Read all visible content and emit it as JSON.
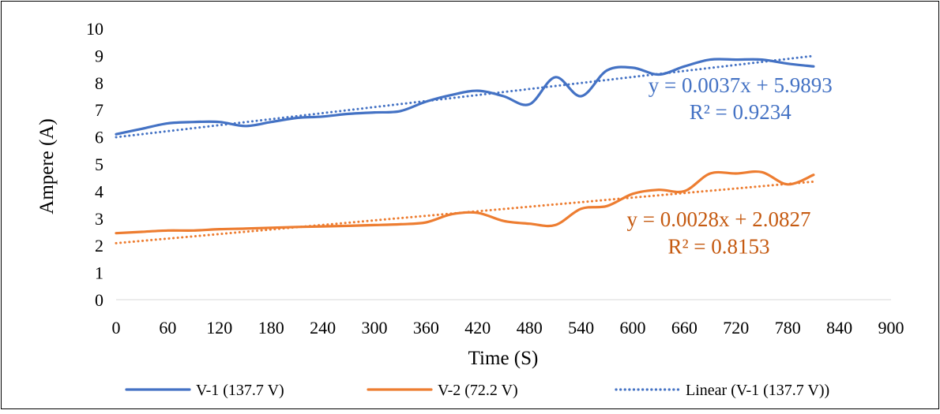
{
  "chart_data": {
    "type": "line",
    "xlabel": "Time (S)",
    "ylabel": "Ampere (A)",
    "xlim": [
      0,
      900
    ],
    "ylim": [
      0,
      10
    ],
    "x_ticks": [
      0,
      60,
      120,
      180,
      240,
      300,
      360,
      420,
      480,
      540,
      600,
      660,
      720,
      780,
      840,
      900
    ],
    "y_ticks": [
      0,
      1,
      2,
      3,
      4,
      5,
      6,
      7,
      8,
      9,
      10
    ],
    "x_tick_labels": [
      "0",
      "60",
      "120",
      "180",
      "240",
      "300",
      "360",
      "420",
      "480",
      "540",
      "600",
      "660",
      "720",
      "780",
      "840",
      "900"
    ],
    "y_tick_labels": [
      "0",
      "1",
      "2",
      "3",
      "4",
      "5",
      "6",
      "7",
      "8",
      "9",
      "10"
    ],
    "grid": false,
    "legend_position": "bottom",
    "series": [
      {
        "name": "V-1 (137.7 V)",
        "color": "#4472C4",
        "style": "solid",
        "x": [
          0,
          30,
          60,
          90,
          120,
          150,
          180,
          210,
          240,
          270,
          300,
          330,
          360,
          390,
          420,
          450,
          480,
          510,
          540,
          570,
          600,
          630,
          660,
          690,
          720,
          750,
          780,
          810
        ],
        "y": [
          6.1,
          6.3,
          6.5,
          6.55,
          6.55,
          6.4,
          6.55,
          6.7,
          6.75,
          6.85,
          6.9,
          6.95,
          7.3,
          7.55,
          7.7,
          7.5,
          7.2,
          8.2,
          7.5,
          8.45,
          8.55,
          8.3,
          8.6,
          8.85,
          8.85,
          8.85,
          8.7,
          8.6
        ]
      },
      {
        "name": "V-2 (72.2 V)",
        "color": "#ED7D31",
        "style": "solid",
        "x": [
          0,
          30,
          60,
          90,
          120,
          150,
          180,
          210,
          240,
          270,
          300,
          330,
          360,
          390,
          420,
          450,
          480,
          510,
          540,
          570,
          600,
          630,
          660,
          690,
          720,
          750,
          780,
          810
        ],
        "y": [
          2.45,
          2.5,
          2.55,
          2.55,
          2.6,
          2.62,
          2.65,
          2.68,
          2.7,
          2.72,
          2.75,
          2.78,
          2.85,
          3.15,
          3.2,
          2.9,
          2.8,
          2.75,
          3.35,
          3.45,
          3.9,
          4.05,
          4.0,
          4.65,
          4.65,
          4.7,
          4.25,
          4.6
        ]
      },
      {
        "name": "Linear (V-1 (137.7 V))",
        "color": "#4472C4",
        "style": "dotted",
        "x": [
          0,
          810
        ],
        "y": [
          5.9893,
          8.9863
        ]
      },
      {
        "name": "",
        "color": "#ED7D31",
        "style": "dotted",
        "x": [
          0,
          810
        ],
        "y": [
          2.0827,
          4.3507
        ]
      }
    ],
    "annotations": [
      {
        "id": "v1-eq",
        "text": "y = 0.0037x + 5.9893",
        "color": "#4472C4",
        "x": 725,
        "y": 7.65
      },
      {
        "id": "v1-r2",
        "text": "R² = 0.9234",
        "color": "#4472C4",
        "x": 725,
        "y": 6.65
      },
      {
        "id": "v2-eq",
        "text": "y = 0.0028x + 2.0827",
        "color": "#C55A11",
        "x": 700,
        "y": 2.7
      },
      {
        "id": "v2-r2",
        "text": "R² = 0.8153",
        "color": "#C55A11",
        "x": 700,
        "y": 1.7
      }
    ],
    "legend": [
      {
        "label": "V-1 (137.7 V)",
        "color": "#4472C4",
        "style": "solid"
      },
      {
        "label": "V-2 (72.2 V)",
        "color": "#ED7D31",
        "style": "solid"
      },
      {
        "label": "Linear (V-1 (137.7 V))",
        "color": "#4472C4",
        "style": "dotted"
      }
    ]
  }
}
